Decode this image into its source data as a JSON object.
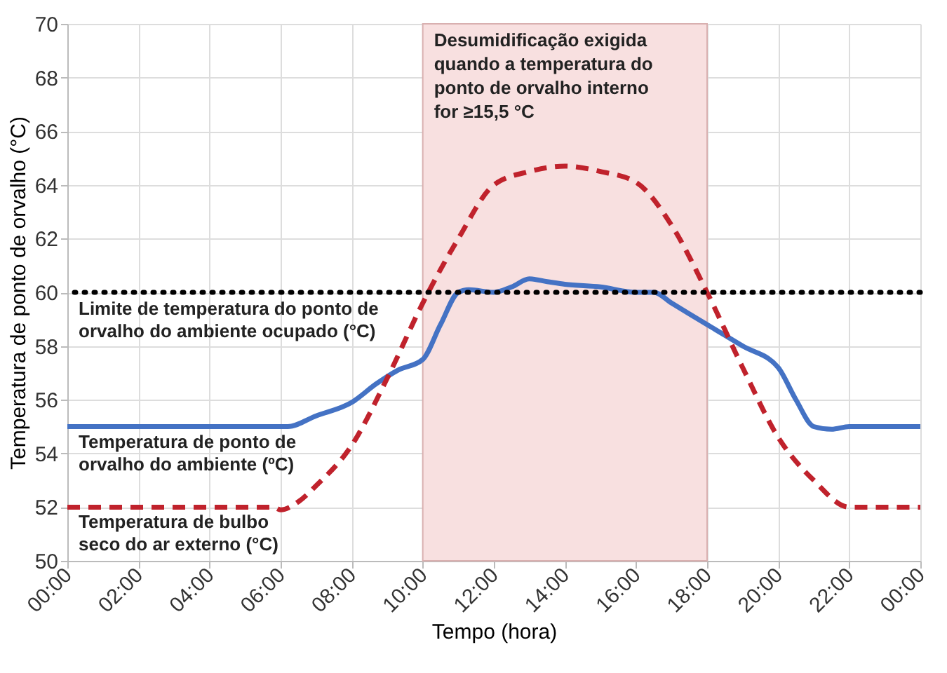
{
  "chart_data": {
    "type": "line",
    "xlabel": "Tempo (hora)",
    "ylabel": "Temperatura de ponto de orvalho (°C)",
    "xlim": [
      0,
      24
    ],
    "xticks": [
      {
        "value": 0,
        "label": "00:00"
      },
      {
        "value": 2,
        "label": "02:00"
      },
      {
        "value": 4,
        "label": "04:00"
      },
      {
        "value": 6,
        "label": "06:00"
      },
      {
        "value": 8,
        "label": "08:00"
      },
      {
        "value": 10,
        "label": "10:00"
      },
      {
        "value": 12,
        "label": "12:00"
      },
      {
        "value": 14,
        "label": "14:00"
      },
      {
        "value": 16,
        "label": "16:00"
      },
      {
        "value": 18,
        "label": "18:00"
      },
      {
        "value": 20,
        "label": "20:00"
      },
      {
        "value": 22,
        "label": "22:00"
      },
      {
        "value": 24,
        "label": "00:00"
      }
    ],
    "ylim": [
      50,
      70
    ],
    "yticks": [
      50,
      52,
      54,
      56,
      58,
      60,
      62,
      64,
      66,
      68,
      70
    ],
    "grid": true,
    "series": [
      {
        "name": "Temperatura de ponto de orvalho do ambiente (ºC)",
        "color": "#4472c4",
        "line_style": "solid",
        "x": [
          0,
          5.8,
          6.2,
          7,
          8,
          8.7,
          9.3,
          10,
          10.5,
          11,
          11.3,
          12,
          12.5,
          13,
          13.5,
          14,
          15,
          16,
          16.5,
          17,
          18,
          19,
          20,
          20.5,
          21,
          21.5,
          22,
          24
        ],
        "values": [
          55,
          55,
          55,
          55.4,
          55.9,
          56.6,
          57.1,
          57.5,
          58.8,
          60,
          60.1,
          60,
          60.2,
          60.5,
          60.4,
          60.3,
          60.2,
          60,
          60,
          59.6,
          58.8,
          58,
          57.2,
          56,
          55,
          54.9,
          55,
          55
        ]
      },
      {
        "name": "Temperatura de bulbo seco do ar externo (°C)",
        "color": "#c0222c",
        "line_style": "dashed",
        "x": [
          0,
          5.8,
          6,
          6.5,
          7,
          8,
          9,
          10,
          11,
          12,
          13,
          14,
          15,
          16,
          17,
          18,
          19,
          20,
          21,
          22,
          22.5,
          24
        ],
        "values": [
          52,
          52,
          51.9,
          52.2,
          52.8,
          54.3,
          56.8,
          59.6,
          62,
          64,
          64.5,
          64.7,
          64.5,
          64.1,
          62.5,
          60,
          57.2,
          54.6,
          53,
          52,
          52,
          52
        ]
      }
    ],
    "ref_lines": [
      {
        "axis": "y",
        "value": 60,
        "label": "Limite de temperatura do ponto de orvalho do ambiente ocupado (°C)",
        "color": "#000000",
        "line_style": "dotted"
      }
    ],
    "bands": [
      {
        "axis": "x",
        "from": 10,
        "to": 18,
        "label": "Desumidificação exigida quando a temperatura do ponto de orvalho interno for ≥15,5 °C",
        "color": "#f8e0e0"
      }
    ]
  }
}
